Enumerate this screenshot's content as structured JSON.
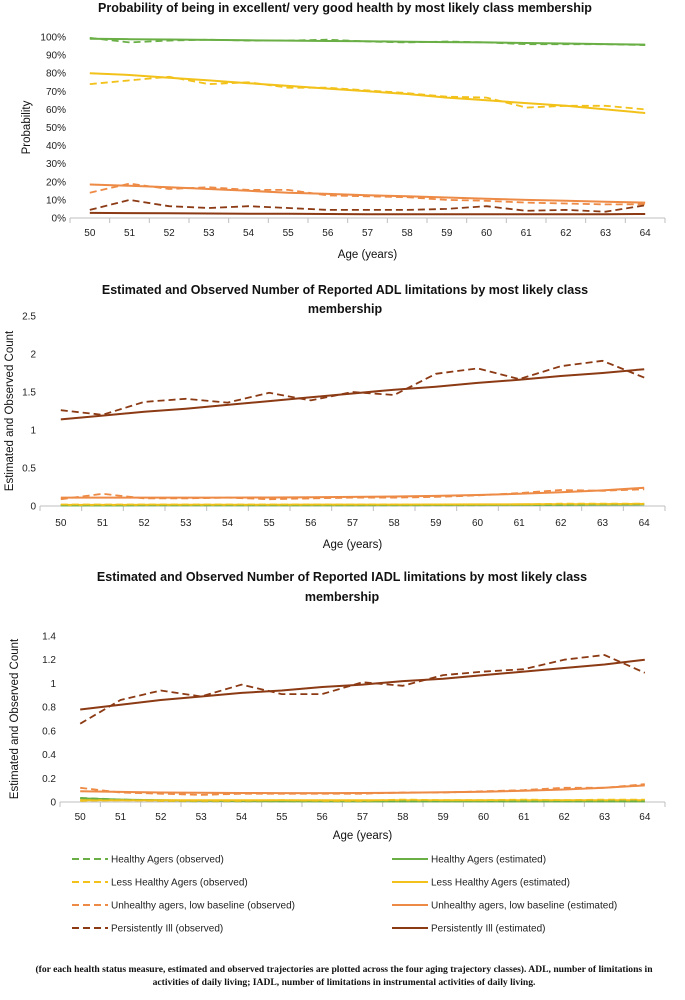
{
  "colors": {
    "healthy": "#6aaf46",
    "less_healthy": "#f2c11a",
    "unhealthy": "#ed8a45",
    "persistently_ill": "#8b3a14"
  },
  "chart_data": [
    {
      "type": "line",
      "title": "Probability of being in excellent/ very good health by most likely class membership",
      "title_lines": [
        "Probability of being in excellent/ very good health by most likely class membership"
      ],
      "xlabel": "Age (years)",
      "ylabel": "Probability",
      "x": [
        50,
        51,
        52,
        53,
        54,
        55,
        56,
        57,
        58,
        59,
        60,
        61,
        62,
        63,
        64
      ],
      "ylim": [
        0,
        1
      ],
      "yticks": [
        0,
        0.1,
        0.2,
        0.3,
        0.4,
        0.5,
        0.6,
        0.7,
        0.8,
        0.9,
        1.0
      ],
      "ytick_labels": [
        "0%",
        "10%",
        "20%",
        "30%",
        "40%",
        "50%",
        "60%",
        "70%",
        "80%",
        "90%",
        "100%"
      ],
      "grid": false,
      "series": [
        {
          "name": "Healthy Agers (observed)",
          "color_key": "healthy",
          "dashed": true,
          "values": [
            0.995,
            0.97,
            0.98,
            0.985,
            0.98,
            0.98,
            0.985,
            0.975,
            0.97,
            0.975,
            0.97,
            0.96,
            0.96,
            0.96,
            0.955
          ]
        },
        {
          "name": "Healthy Agers (estimated)",
          "color_key": "healthy",
          "dashed": false,
          "values": [
            0.99,
            0.988,
            0.986,
            0.984,
            0.982,
            0.98,
            0.978,
            0.976,
            0.974,
            0.972,
            0.97,
            0.967,
            0.964,
            0.961,
            0.958
          ]
        },
        {
          "name": "Less Healthy Agers (observed)",
          "color_key": "less_healthy",
          "dashed": true,
          "values": [
            0.74,
            0.76,
            0.78,
            0.74,
            0.75,
            0.72,
            0.72,
            0.705,
            0.69,
            0.67,
            0.665,
            0.61,
            0.62,
            0.62,
            0.6
          ]
        },
        {
          "name": "Less Healthy Agers (estimated)",
          "color_key": "less_healthy",
          "dashed": false,
          "values": [
            0.8,
            0.79,
            0.775,
            0.76,
            0.745,
            0.73,
            0.715,
            0.7,
            0.685,
            0.665,
            0.65,
            0.635,
            0.62,
            0.6,
            0.58
          ]
        },
        {
          "name": "Unhealthy agers, low baseline (observed)",
          "color_key": "unhealthy",
          "dashed": true,
          "values": [
            0.14,
            0.19,
            0.16,
            0.17,
            0.155,
            0.155,
            0.125,
            0.12,
            0.115,
            0.1,
            0.095,
            0.085,
            0.08,
            0.075,
            0.075
          ]
        },
        {
          "name": "Unhealthy agers, low baseline (estimated)",
          "color_key": "unhealthy",
          "dashed": false,
          "values": [
            0.185,
            0.178,
            0.17,
            0.16,
            0.15,
            0.14,
            0.133,
            0.126,
            0.12,
            0.113,
            0.106,
            0.1,
            0.095,
            0.09,
            0.085
          ]
        },
        {
          "name": "Persistently Ill (observed)",
          "color_key": "persistently_ill",
          "dashed": true,
          "values": [
            0.045,
            0.1,
            0.065,
            0.055,
            0.065,
            0.055,
            0.045,
            0.045,
            0.045,
            0.05,
            0.065,
            0.04,
            0.045,
            0.035,
            0.07
          ]
        },
        {
          "name": "Persistently Ill (estimated)",
          "color_key": "persistently_ill",
          "dashed": false,
          "values": [
            0.028,
            0.027,
            0.026,
            0.025,
            0.024,
            0.023,
            0.022,
            0.021,
            0.021,
            0.021,
            0.021,
            0.021,
            0.021,
            0.021,
            0.022
          ]
        }
      ]
    },
    {
      "type": "line",
      "title": "Estimated and Observed Number of Reported ADL limitations by most likely class membership",
      "title_lines": [
        "Estimated and Observed Number of Reported ADL limitations by most likely class",
        "membership"
      ],
      "xlabel": "Age (years)",
      "ylabel": "Estimated and Observed Count",
      "x": [
        50,
        51,
        52,
        53,
        54,
        55,
        56,
        57,
        58,
        59,
        60,
        61,
        62,
        63,
        64
      ],
      "ylim": [
        0,
        2.5
      ],
      "yticks": [
        0,
        0.5,
        1,
        1.5,
        2,
        2.5
      ],
      "ytick_labels": [
        "0",
        "0.5",
        "1",
        "1.5",
        "2",
        "2.5"
      ],
      "grid": false,
      "series": [
        {
          "name": "Healthy Agers (observed)",
          "color_key": "healthy",
          "dashed": true,
          "values": [
            0.01,
            0.01,
            0.01,
            0.01,
            0.01,
            0.01,
            0.01,
            0.01,
            0.01,
            0.01,
            0.01,
            0.015,
            0.015,
            0.02,
            0.02
          ]
        },
        {
          "name": "Healthy Agers (estimated)",
          "color_key": "healthy",
          "dashed": false,
          "values": [
            0.008,
            0.008,
            0.009,
            0.009,
            0.01,
            0.01,
            0.011,
            0.011,
            0.012,
            0.013,
            0.014,
            0.015,
            0.017,
            0.019,
            0.021
          ]
        },
        {
          "name": "Less Healthy Agers (observed)",
          "color_key": "less_healthy",
          "dashed": true,
          "values": [
            0.02,
            0.02,
            0.02,
            0.02,
            0.02,
            0.02,
            0.02,
            0.02,
            0.02,
            0.02,
            0.02,
            0.02,
            0.03,
            0.03,
            0.03
          ]
        },
        {
          "name": "Less Healthy Agers (estimated)",
          "color_key": "less_healthy",
          "dashed": false,
          "values": [
            0.015,
            0.015,
            0.016,
            0.016,
            0.017,
            0.017,
            0.018,
            0.018,
            0.019,
            0.02,
            0.021,
            0.022,
            0.023,
            0.025,
            0.027
          ]
        },
        {
          "name": "Unhealthy agers, low baseline (observed)",
          "color_key": "unhealthy",
          "dashed": true,
          "values": [
            0.09,
            0.16,
            0.1,
            0.1,
            0.11,
            0.09,
            0.1,
            0.11,
            0.11,
            0.12,
            0.14,
            0.17,
            0.21,
            0.2,
            0.22
          ]
        },
        {
          "name": "Unhealthy agers, low baseline (estimated)",
          "color_key": "unhealthy",
          "dashed": false,
          "values": [
            0.11,
            0.11,
            0.11,
            0.11,
            0.11,
            0.112,
            0.115,
            0.12,
            0.125,
            0.133,
            0.145,
            0.16,
            0.18,
            0.205,
            0.24
          ]
        },
        {
          "name": "Persistently Ill (observed)",
          "color_key": "persistently_ill",
          "dashed": true,
          "values": [
            1.26,
            1.2,
            1.37,
            1.41,
            1.36,
            1.49,
            1.39,
            1.5,
            1.46,
            1.74,
            1.81,
            1.67,
            1.84,
            1.91,
            1.69
          ]
        },
        {
          "name": "Persistently Ill (estimated)",
          "color_key": "persistently_ill",
          "dashed": false,
          "values": [
            1.14,
            1.19,
            1.24,
            1.28,
            1.33,
            1.38,
            1.43,
            1.48,
            1.53,
            1.57,
            1.62,
            1.66,
            1.71,
            1.75,
            1.8
          ]
        }
      ]
    },
    {
      "type": "line",
      "title": "Estimated and Observed Number of Reported IADL limitations by most likely class membership",
      "title_lines": [
        "Estimated and Observed Number of Reported IADL limitations by most likely class",
        "membership"
      ],
      "xlabel": "Age (years)",
      "ylabel": "Estimated and Observed Count",
      "x": [
        50,
        51,
        52,
        53,
        54,
        55,
        56,
        57,
        58,
        59,
        60,
        61,
        62,
        63,
        64
      ],
      "ylim": [
        0,
        1.4
      ],
      "yticks": [
        0,
        0.2,
        0.4,
        0.6,
        0.8,
        1,
        1.2,
        1.4
      ],
      "ytick_labels": [
        "0",
        "0.2",
        "0.4",
        "0.6",
        "0.8",
        "1",
        "1.2",
        "1.4"
      ],
      "grid": false,
      "series": [
        {
          "name": "Healthy Agers (observed)",
          "color_key": "healthy",
          "dashed": true,
          "values": [
            0.035,
            0.02,
            0.01,
            0.005,
            0.005,
            0.005,
            0.005,
            0.005,
            0.005,
            0.005,
            0.005,
            0.005,
            0.005,
            0.005,
            0.005
          ]
        },
        {
          "name": "Healthy Agers (estimated)",
          "color_key": "healthy",
          "dashed": false,
          "values": [
            0.03,
            0.02,
            0.015,
            0.01,
            0.008,
            0.006,
            0.005,
            0.005,
            0.005,
            0.005,
            0.005,
            0.005,
            0.005,
            0.005,
            0.005
          ]
        },
        {
          "name": "Less Healthy Agers (observed)",
          "color_key": "less_healthy",
          "dashed": true,
          "values": [
            0.01,
            0.015,
            0.01,
            0.01,
            0.01,
            0.015,
            0.01,
            0.01,
            0.02,
            0.015,
            0.015,
            0.02,
            0.015,
            0.02,
            0.02
          ]
        },
        {
          "name": "Less Healthy Agers (estimated)",
          "color_key": "less_healthy",
          "dashed": false,
          "values": [
            0.015,
            0.015,
            0.015,
            0.015,
            0.015,
            0.015,
            0.015,
            0.015,
            0.015,
            0.015,
            0.015,
            0.015,
            0.015,
            0.015,
            0.015
          ]
        },
        {
          "name": "Unhealthy agers, low baseline (observed)",
          "color_key": "unhealthy",
          "dashed": true,
          "values": [
            0.12,
            0.08,
            0.07,
            0.06,
            0.07,
            0.07,
            0.07,
            0.07,
            0.08,
            0.08,
            0.09,
            0.1,
            0.12,
            0.12,
            0.15
          ]
        },
        {
          "name": "Unhealthy agers, low baseline (estimated)",
          "color_key": "unhealthy",
          "dashed": false,
          "values": [
            0.09,
            0.085,
            0.08,
            0.078,
            0.076,
            0.075,
            0.075,
            0.076,
            0.078,
            0.082,
            0.087,
            0.095,
            0.105,
            0.12,
            0.14
          ]
        },
        {
          "name": "Persistently Ill (observed)",
          "color_key": "persistently_ill",
          "dashed": true,
          "values": [
            0.66,
            0.86,
            0.94,
            0.89,
            0.99,
            0.91,
            0.91,
            1.01,
            0.98,
            1.07,
            1.1,
            1.12,
            1.2,
            1.24,
            1.09
          ]
        },
        {
          "name": "Persistently Ill (estimated)",
          "color_key": "persistently_ill",
          "dashed": false,
          "values": [
            0.78,
            0.82,
            0.86,
            0.89,
            0.92,
            0.94,
            0.97,
            0.99,
            1.02,
            1.04,
            1.07,
            1.1,
            1.13,
            1.16,
            1.2
          ]
        }
      ]
    }
  ],
  "legend": {
    "items": [
      {
        "label": "Healthy Agers (observed)",
        "color_key": "healthy",
        "dashed": true
      },
      {
        "label": "Healthy Agers (estimated)",
        "color_key": "healthy",
        "dashed": false
      },
      {
        "label": "Less Healthy Agers (observed)",
        "color_key": "less_healthy",
        "dashed": true
      },
      {
        "label": "Less Healthy Agers (estimated)",
        "color_key": "less_healthy",
        "dashed": false
      },
      {
        "label": "Unhealthy agers, low baseline (observed)",
        "color_key": "unhealthy",
        "dashed": true
      },
      {
        "label": "Unhealthy agers, low baseline (estimated)",
        "color_key": "unhealthy",
        "dashed": false
      },
      {
        "label": "Persistently Ill (observed)",
        "color_key": "persistently_ill",
        "dashed": true
      },
      {
        "label": "Persistently Ill (estimated)",
        "color_key": "persistently_ill",
        "dashed": false
      }
    ]
  },
  "caption": "(for each health status measure, estimated and observed trajectories are plotted across the four aging trajectory classes). ADL, number of limitations in activities of daily living; IADL, number of limitations in instrumental activities of daily living."
}
